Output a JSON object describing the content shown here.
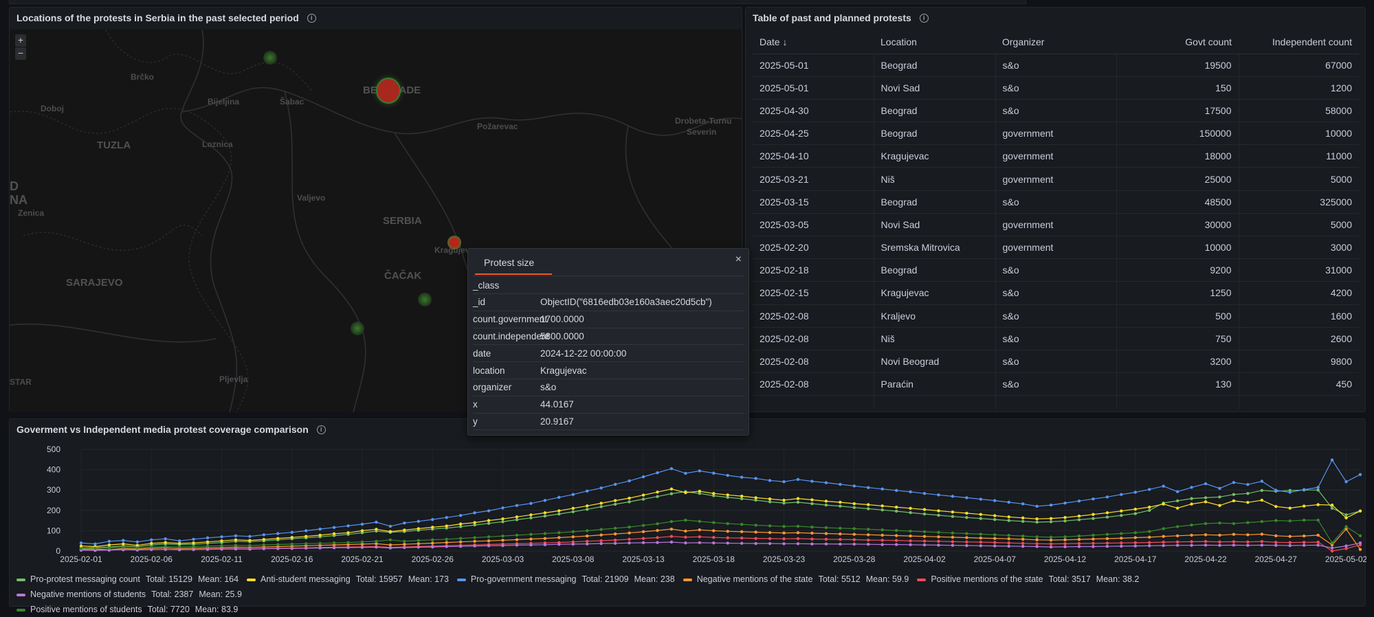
{
  "map_panel": {
    "title": "Locations of the protests in Serbia in the past selected period",
    "zoom_in": "+",
    "zoom_out": "−",
    "labels": [
      "Brčko",
      "Bijeljina",
      "Šabac",
      "BELGRADE",
      "Doboj",
      "TUZLA",
      "Loznica",
      "Požarevac",
      "Drobeta-Turnu",
      "Severin",
      "Valjevo",
      "SERBIA",
      "Zenica",
      "Kragujevac",
      "ČAČAK",
      "SARAJEVO",
      "Pljevlja",
      "D",
      "NA",
      "STAR"
    ],
    "marker_colors": {
      "large": "#c4302b",
      "small": "#3d8a2f"
    }
  },
  "popup": {
    "tab": "Protest size",
    "close": "×",
    "rows": [
      {
        "key": "_class",
        "value": ""
      },
      {
        "key": "_id",
        "value": "ObjectID(\"6816edb03e160a3aec20d5cb\")"
      },
      {
        "key": "count.government",
        "value": "1700.0000"
      },
      {
        "key": "count.independent",
        "value": "5800.0000"
      },
      {
        "key": "date",
        "value": "2024-12-22 00:00:00"
      },
      {
        "key": "location",
        "value": "Kragujevac"
      },
      {
        "key": "organizer",
        "value": "s&o"
      },
      {
        "key": "x",
        "value": "44.0167"
      },
      {
        "key": "y",
        "value": "20.9167"
      }
    ]
  },
  "table_panel": {
    "title": "Table of past and planned protests",
    "columns": [
      "Date ↓",
      "Location",
      "Organizer",
      "Govt count",
      "Independent count"
    ],
    "rows": [
      [
        "2025-05-01",
        "Beograd",
        "s&o",
        "19500",
        "67000"
      ],
      [
        "2025-05-01",
        "Novi Sad",
        "s&o",
        "150",
        "1200"
      ],
      [
        "2025-04-30",
        "Beograd",
        "s&o",
        "17500",
        "58000"
      ],
      [
        "2025-04-25",
        "Beograd",
        "government",
        "150000",
        "10000"
      ],
      [
        "2025-04-10",
        "Kragujevac",
        "government",
        "18000",
        "11000"
      ],
      [
        "2025-03-21",
        "Niš",
        "government",
        "25000",
        "5000"
      ],
      [
        "2025-03-15",
        "Beograd",
        "s&o",
        "48500",
        "325000"
      ],
      [
        "2025-03-05",
        "Novi Sad",
        "government",
        "30000",
        "5000"
      ],
      [
        "2025-02-20",
        "Sremska Mitrovica",
        "government",
        "10000",
        "3000"
      ],
      [
        "2025-02-18",
        "Beograd",
        "s&o",
        "9200",
        "31000"
      ],
      [
        "2025-02-15",
        "Kragujevac",
        "s&o",
        "1250",
        "4200"
      ],
      [
        "2025-02-08",
        "Kraljevo",
        "s&o",
        "500",
        "1600"
      ],
      [
        "2025-02-08",
        "Niš",
        "s&o",
        "750",
        "2600"
      ],
      [
        "2025-02-08",
        "Novi Beograd",
        "s&o",
        "3200",
        "9800"
      ],
      [
        "2025-02-08",
        "Paraćin",
        "s&o",
        "130",
        "450"
      ]
    ]
  },
  "chart_panel": {
    "title": "Goverment vs Independent media protest coverage comparison"
  },
  "chart_data": {
    "type": "line",
    "title": "Goverment vs Independent media protest coverage comparison",
    "xlabel": "",
    "ylabel": "",
    "x_start": "2025-02-01",
    "x_end": "2025-05-03",
    "x_step": "1 day",
    "x_ticks": [
      "2025-02-01",
      "2025-02-06",
      "2025-02-11",
      "2025-02-16",
      "2025-02-21",
      "2025-02-26",
      "2025-03-03",
      "2025-03-08",
      "2025-03-13",
      "2025-03-18",
      "2025-03-23",
      "2025-03-28",
      "2025-04-02",
      "2025-04-07",
      "2025-04-12",
      "2025-04-17",
      "2025-04-22",
      "2025-04-27",
      "2025-05-02"
    ],
    "y_ticks": [
      0,
      100,
      200,
      300,
      400,
      500
    ],
    "ylim": [
      0,
      500
    ],
    "grid": true,
    "legend": "bottom",
    "series": [
      {
        "name": "Pro-protest messaging count",
        "total": "15129",
        "mean": "164",
        "color": "#73bf69",
        "values": [
          15,
          18,
          20,
          25,
          22,
          30,
          35,
          32,
          33,
          38,
          42,
          48,
          46,
          50,
          55,
          60,
          65,
          70,
          76,
          82,
          90,
          98,
          92,
          96,
          102,
          108,
          113,
          120,
          128,
          136,
          144,
          154,
          163,
          172,
          182,
          193,
          205,
          218,
          230,
          242,
          255,
          268,
          282,
          292,
          283,
          272,
          264,
          257,
          250,
          242,
          236,
          240,
          233,
          226,
          221,
          214,
          208,
          202,
          196,
          189,
          182,
          176,
          170,
          165,
          160,
          155,
          150,
          146,
          142,
          144,
          148,
          154,
          160,
          167,
          175,
          184,
          200,
          236,
          247,
          258,
          262,
          266,
          278,
          283,
          298,
          294,
          298,
          300,
          300,
          211,
          178,
          197
        ]
      },
      {
        "name": "Anti-student messaging",
        "total": "15957",
        "mean": "173",
        "color": "#fade2a",
        "values": [
          25,
          22,
          30,
          35,
          28,
          38,
          42,
          38,
          40,
          45,
          50,
          55,
          52,
          57,
          62,
          67,
          72,
          78,
          85,
          90,
          100,
          107,
          96,
          103,
          110,
          117,
          123,
          133,
          140,
          150,
          158,
          168,
          178,
          188,
          198,
          210,
          222,
          235,
          248,
          260,
          275,
          290,
          305,
          287,
          294,
          283,
          276,
          270,
          262,
          256,
          250,
          258,
          252,
          245,
          240,
          233,
          228,
          222,
          216,
          210,
          204,
          198,
          192,
          186,
          180,
          174,
          168,
          163,
          158,
          160,
          165,
          172,
          180,
          188,
          197,
          206,
          216,
          231,
          211,
          231,
          242,
          224,
          247,
          239,
          250,
          219,
          211,
          221,
          228,
          226,
          163,
          197
        ]
      },
      {
        "name": "Pro-government messaging",
        "total": "21909",
        "mean": "238",
        "color": "#5794f2",
        "values": [
          40,
          35,
          48,
          52,
          45,
          55,
          60,
          50,
          58,
          65,
          70,
          75,
          72,
          80,
          86,
          92,
          100,
          108,
          116,
          124,
          132,
          142,
          122,
          138,
          146,
          155,
          165,
          175,
          188,
          198,
          212,
          224,
          234,
          249,
          264,
          278,
          295,
          310,
          328,
          345,
          365,
          385,
          405,
          382,
          394,
          383,
          372,
          363,
          357,
          347,
          341,
          352,
          343,
          336,
          328,
          320,
          312,
          305,
          298,
          291,
          283,
          276,
          269,
          262,
          255,
          248,
          240,
          232,
          220,
          226,
          236,
          246,
          256,
          266,
          278,
          289,
          303,
          319,
          292,
          313,
          331,
          308,
          337,
          327,
          343,
          299,
          289,
          302,
          313,
          448,
          341,
          376
        ]
      },
      {
        "name": "Negative mentions of the state",
        "total": "5512",
        "mean": "59.9",
        "color": "#ff9830",
        "values": [
          8,
          10,
          6,
          12,
          10,
          14,
          16,
          12,
          14,
          16,
          17,
          19,
          18,
          20,
          22,
          24,
          26,
          28,
          30,
          32,
          34,
          36,
          30,
          33,
          36,
          39,
          42,
          45,
          48,
          50,
          53,
          56,
          59,
          62,
          66,
          70,
          74,
          79,
          84,
          89,
          95,
          101,
          108,
          98,
          104,
          100,
          97,
          95,
          93,
          91,
          89,
          90,
          88,
          86,
          84,
          82,
          80,
          78,
          76,
          74,
          72,
          70,
          68,
          66,
          64,
          62,
          60,
          58,
          55,
          54,
          55,
          57,
          59,
          61,
          63,
          66,
          68,
          72,
          75,
          78,
          80,
          78,
          82,
          80,
          83,
          75,
          72,
          74,
          78,
          30,
          108,
          8
        ]
      },
      {
        "name": "Positive mentions of the state",
        "total": "3517",
        "mean": "38.2",
        "color": "#f2495c",
        "values": [
          5,
          6,
          4,
          7,
          6,
          8,
          9,
          7,
          8,
          10,
          11,
          12,
          11,
          13,
          14,
          15,
          16,
          18,
          19,
          20,
          21,
          22,
          18,
          20,
          22,
          24,
          26,
          28,
          30,
          32,
          34,
          36,
          38,
          40,
          42,
          45,
          48,
          51,
          54,
          58,
          62,
          66,
          72,
          68,
          70,
          67,
          65,
          64,
          62,
          61,
          60,
          61,
          59,
          58,
          57,
          56,
          54,
          53,
          52,
          50,
          49,
          48,
          46,
          45,
          44,
          42,
          40,
          38,
          36,
          35,
          36,
          37,
          38,
          39,
          40,
          41,
          42,
          44,
          45,
          46,
          47,
          45,
          46,
          45,
          47,
          43,
          42,
          43,
          44,
          0,
          12,
          30
        ]
      },
      {
        "name": "Negative mentions of students",
        "total": "2387",
        "mean": "25.9",
        "color": "#b877d9",
        "values": [
          4,
          3,
          5,
          6,
          5,
          7,
          8,
          6,
          7,
          8,
          9,
          10,
          9,
          11,
          12,
          13,
          14,
          15,
          16,
          17,
          18,
          19,
          15,
          17,
          19,
          20,
          22,
          23,
          25,
          26,
          27,
          29,
          30,
          31,
          33,
          34,
          35,
          37,
          38,
          40,
          41,
          42,
          44,
          40,
          41,
          40,
          39,
          38,
          37,
          37,
          36,
          36,
          35,
          35,
          34,
          34,
          33,
          32,
          32,
          31,
          30,
          29,
          28,
          27,
          26,
          25,
          24,
          23,
          22,
          20,
          21,
          22,
          22,
          23,
          24,
          25,
          26,
          27,
          28,
          28,
          29,
          28,
          29,
          28,
          29,
          28,
          27,
          28,
          29,
          15,
          25,
          40
        ]
      },
      {
        "name": "Positive mentions of students",
        "total": "7720",
        "mean": "83.9",
        "color": "#37872d",
        "values": [
          12,
          14,
          15,
          18,
          16,
          20,
          22,
          20,
          22,
          24,
          26,
          28,
          27,
          30,
          32,
          34,
          36,
          38,
          40,
          42,
          45,
          48,
          55,
          48,
          52,
          55,
          58,
          62,
          66,
          70,
          74,
          78,
          82,
          86,
          90,
          95,
          100,
          106,
          112,
          118,
          126,
          134,
          145,
          152,
          146,
          140,
          135,
          131,
          127,
          124,
          121,
          122,
          118,
          115,
          112,
          110,
          107,
          104,
          101,
          98,
          95,
          92,
          89,
          86,
          83,
          80,
          77,
          74,
          70,
          68,
          70,
          74,
          78,
          82,
          86,
          90,
          96,
          110,
          120,
          128,
          135,
          138,
          135,
          140,
          145,
          150,
          148,
          152,
          152,
          40,
          120,
          75
        ]
      }
    ],
    "legend_total_label": "Total:",
    "legend_mean_label": "Mean:"
  }
}
